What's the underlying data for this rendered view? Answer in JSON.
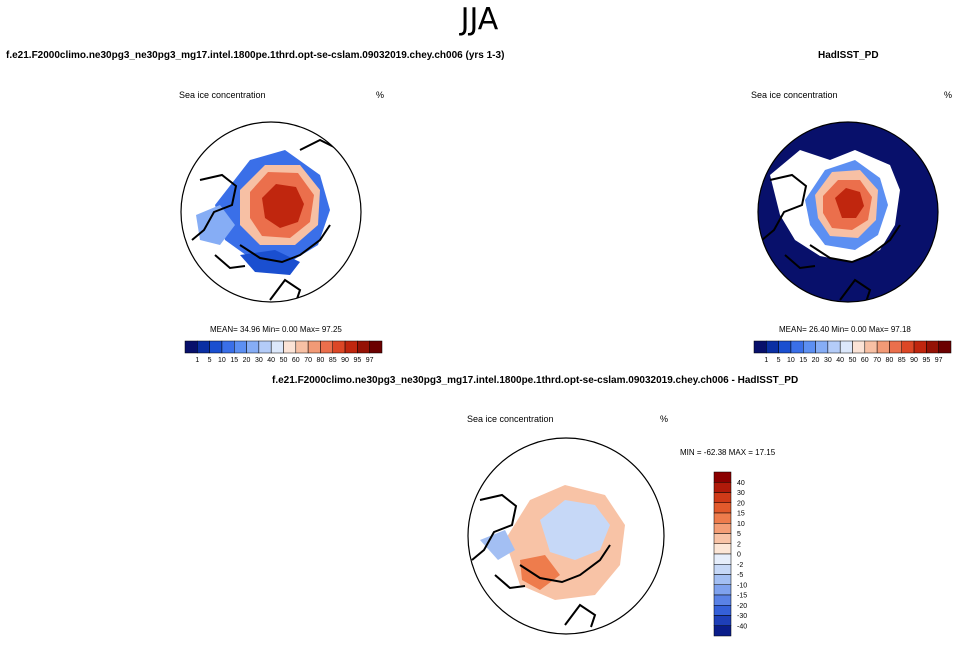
{
  "main_title": "JJA",
  "panels": {
    "left": {
      "title": "f.e21.F2000climo.ne30pg3_ne30pg3_mg17.intel.1800pe.1thrd.opt-se-cslam.09032019.chey.ch006 (yrs 1-3)",
      "variable": "Sea ice concentration",
      "unit": "%",
      "stats": "MEAN=  34.96  Min=   0.00  Max=  97.25"
    },
    "right": {
      "title": "HadISST_PD",
      "variable": "Sea ice concentration",
      "unit": "%",
      "stats": "MEAN=  26.40  Min=   0.00  Max=  97.18"
    },
    "diff": {
      "title": "f.e21.F2000climo.ne30pg3_ne30pg3_mg17.intel.1800pe.1thrd.opt-se-cslam.09032019.chey.ch006 - HadISST_PD",
      "variable": "Sea ice concentration",
      "unit": "%",
      "stats": "MIN = -62.38 MAX =  17.15"
    }
  },
  "chart_data": [
    {
      "type": "heatmap",
      "projection": "north polar stereographic",
      "title": "f.e21.F2000climo.ne30pg3_ne30pg3_mg17.intel.1800pe.1thrd.opt-se-cslam.09032019.chey.ch006 (yrs 1-3)",
      "variable": "Sea ice concentration",
      "units": "%",
      "mean": 34.96,
      "min": 0.0,
      "max": 97.25,
      "colorbar_levels": [
        "1",
        "5",
        "10",
        "15",
        "20",
        "30",
        "40",
        "50",
        "60",
        "70",
        "80",
        "85",
        "90",
        "95",
        "97"
      ],
      "colorbar_colors": [
        "#08106b",
        "#0a2fa3",
        "#1a4fd0",
        "#3a6fe8",
        "#5c8ff2",
        "#86adf5",
        "#b4ccf8",
        "#dce8fb",
        "#fbe3d6",
        "#f7c0a4",
        "#f29a76",
        "#eb6f4c",
        "#dc4726",
        "#c0260e",
        "#951205",
        "#6b0000"
      ]
    },
    {
      "type": "heatmap",
      "projection": "north polar stereographic",
      "title": "HadISST_PD",
      "variable": "Sea ice concentration",
      "units": "%",
      "mean": 26.4,
      "min": 0.0,
      "max": 97.18,
      "colorbar_levels": [
        "1",
        "5",
        "10",
        "15",
        "20",
        "30",
        "40",
        "50",
        "60",
        "70",
        "80",
        "85",
        "90",
        "95",
        "97"
      ],
      "colorbar_colors": [
        "#08106b",
        "#0a2fa3",
        "#1a4fd0",
        "#3a6fe8",
        "#5c8ff2",
        "#86adf5",
        "#b4ccf8",
        "#dce8fb",
        "#fbe3d6",
        "#f7c0a4",
        "#f29a76",
        "#eb6f4c",
        "#dc4726",
        "#c0260e",
        "#951205",
        "#6b0000"
      ]
    },
    {
      "type": "heatmap",
      "projection": "north polar stereographic",
      "title": "f.e21.F2000climo.ne30pg3_ne30pg3_mg17.intel.1800pe.1thrd.opt-se-cslam.09032019.chey.ch006 - HadISST_PD",
      "variable": "Sea ice concentration",
      "units": "%",
      "min": -62.38,
      "max": 17.15,
      "colorbar_levels": [
        "40",
        "30",
        "20",
        "15",
        "10",
        "5",
        "2",
        "0",
        "-2",
        "-5",
        "-10",
        "-15",
        "-20",
        "-30",
        "-40"
      ],
      "colorbar_colors": [
        "#8b0000",
        "#b01a0a",
        "#cf3a18",
        "#e25a2c",
        "#ee7c4c",
        "#f49e76",
        "#f8c3a6",
        "#fce6d6",
        "#e6eefb",
        "#c6d8f7",
        "#a3bff3",
        "#7fa2ee",
        "#5a82e6",
        "#3560d8",
        "#1e3fb8",
        "#0a1d8a"
      ]
    }
  ],
  "icons": {
    "coastline": "coastline-icon"
  }
}
